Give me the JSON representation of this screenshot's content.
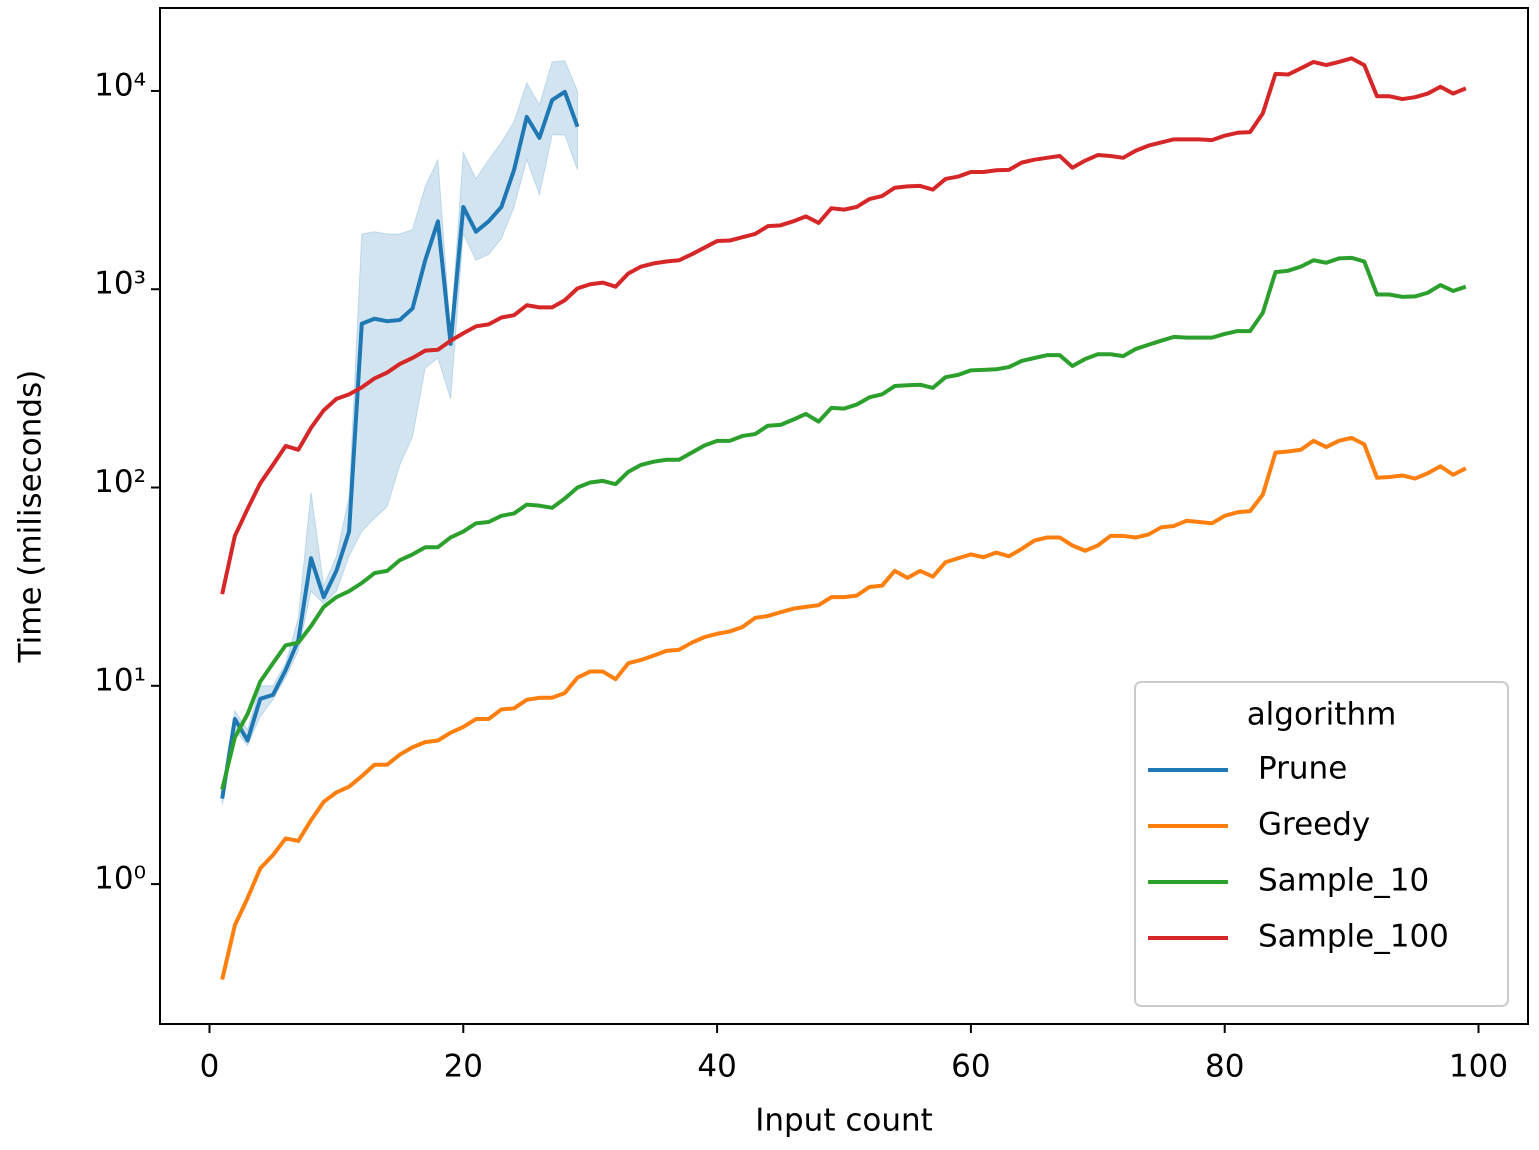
{
  "chart_data": {
    "type": "line",
    "xlabel": "Input count",
    "ylabel": "Time (miliseconds)",
    "x": [
      1,
      2,
      3,
      4,
      5,
      6,
      7,
      8,
      9,
      10,
      11,
      12,
      13,
      14,
      15,
      16,
      17,
      18,
      19,
      20,
      21,
      22,
      23,
      24,
      25,
      26,
      27,
      28,
      29,
      30,
      31,
      32,
      33,
      34,
      35,
      36,
      37,
      38,
      39,
      40,
      41,
      42,
      43,
      44,
      45,
      46,
      47,
      48,
      49,
      50,
      51,
      52,
      53,
      54,
      55,
      56,
      57,
      58,
      59,
      60,
      61,
      62,
      63,
      64,
      65,
      66,
      67,
      68,
      69,
      70,
      71,
      72,
      73,
      74,
      75,
      76,
      77,
      78,
      79,
      80,
      81,
      82,
      83,
      84,
      85,
      86,
      87,
      88,
      89,
      90,
      91,
      92,
      93,
      94,
      95,
      96,
      97,
      98,
      99
    ],
    "xlim": [
      -3.9,
      103.9
    ],
    "xticks": [
      0,
      20,
      40,
      60,
      80,
      100
    ],
    "ylim": [
      0.197,
      26200
    ],
    "log": true,
    "yticks": [
      {
        "value": 1,
        "label": "10⁰"
      },
      {
        "value": 10,
        "label": "10¹"
      },
      {
        "value": 100,
        "label": "10²"
      },
      {
        "value": 1000,
        "label": "10³"
      },
      {
        "value": 10000,
        "label": "10⁴"
      }
    ],
    "legend_title": "algorithm",
    "legend_position": "lower right",
    "series": [
      {
        "name": "Prune",
        "color": "#1f77b4",
        "x": [
          1,
          2,
          3,
          4,
          5,
          6,
          7,
          8,
          9,
          10,
          11,
          12,
          13,
          14,
          15,
          16,
          17,
          18,
          19,
          20,
          21,
          22,
          23,
          24,
          25,
          26,
          27,
          28,
          29
        ],
        "values": [
          2.7,
          6.8,
          5.3,
          8.6,
          9.0,
          12,
          17,
          44,
          28,
          38,
          60,
          670,
          710,
          690,
          700,
          800,
          1400,
          2200,
          530,
          2600,
          1950,
          2200,
          2600,
          4000,
          7400,
          5800,
          9000,
          9900,
          6600
        ],
        "ci_lower": [
          2.5,
          6,
          5,
          7,
          8.5,
          11,
          15,
          30,
          26,
          30,
          45,
          60,
          70,
          80,
          130,
          180,
          400,
          450,
          280,
          1900,
          1400,
          1500,
          1800,
          2600,
          4500,
          3000,
          6000,
          6000,
          4000
        ],
        "ci_upper": [
          2.9,
          7.5,
          6,
          10,
          10,
          13,
          22,
          95,
          32,
          45,
          90,
          1900,
          1950,
          1900,
          1900,
          2000,
          3300,
          4500,
          600,
          4900,
          3600,
          4500,
          5500,
          7000,
          11000,
          8500,
          14000,
          14200,
          10000
        ]
      },
      {
        "name": "Greedy",
        "color": "#ff7f0e",
        "values": [
          0.33,
          0.62,
          0.85,
          1.2,
          1.4,
          1.7,
          1.65,
          2.1,
          2.6,
          2.9,
          3.1,
          3.5,
          4.0,
          4.0,
          4.5,
          4.9,
          5.2,
          5.3,
          5.8,
          6.2,
          6.8,
          6.8,
          7.6,
          7.7,
          8.5,
          8.7,
          8.7,
          9.2,
          11,
          11.8,
          11.8,
          10.8,
          13,
          13.5,
          14.2,
          15,
          15.2,
          16.5,
          17.6,
          18.3,
          18.8,
          19.8,
          22,
          22.5,
          23.5,
          24.5,
          25,
          25.5,
          28,
          28,
          28.5,
          31.5,
          32,
          38,
          35,
          38,
          35.5,
          42,
          44,
          46,
          44.5,
          47,
          45,
          49,
          54,
          56,
          56,
          51,
          48,
          51,
          57,
          57,
          56,
          58,
          63,
          64,
          68,
          67,
          66,
          72,
          75,
          76,
          92,
          150,
          152,
          155,
          172,
          160,
          172,
          178,
          165,
          112,
          113,
          115,
          111,
          118,
          128,
          116,
          125
        ]
      },
      {
        "name": "Sample_10",
        "color": "#2ca02c",
        "values": [
          3.0,
          5.5,
          7.2,
          10.5,
          13,
          16,
          16.5,
          20,
          25,
          28,
          30,
          33,
          37,
          38,
          43,
          46,
          50,
          50,
          56,
          60,
          66,
          67,
          72,
          74,
          82,
          81,
          79,
          88,
          100,
          106,
          108,
          104,
          120,
          130,
          135,
          138,
          138,
          150,
          163,
          172,
          172,
          182,
          186,
          205,
          207,
          220,
          235,
          215,
          252,
          250,
          262,
          285,
          295,
          325,
          328,
          330,
          318,
          360,
          370,
          390,
          392,
          395,
          405,
          435,
          450,
          465,
          465,
          410,
          445,
          470,
          470,
          460,
          500,
          525,
          550,
          575,
          570,
          570,
          570,
          595,
          615,
          615,
          760,
          1220,
          1240,
          1300,
          1400,
          1360,
          1430,
          1440,
          1380,
          940,
          940,
          915,
          920,
          960,
          1050,
          980,
          1030
        ]
      },
      {
        "name": "Sample_100",
        "color": "#d62728",
        "values": [
          29,
          57,
          78,
          105,
          130,
          162,
          155,
          200,
          245,
          280,
          295,
          320,
          355,
          380,
          420,
          450,
          490,
          495,
          550,
          600,
          650,
          665,
          720,
          740,
          830,
          810,
          810,
          880,
          1010,
          1060,
          1080,
          1030,
          1200,
          1300,
          1350,
          1380,
          1400,
          1500,
          1620,
          1750,
          1760,
          1830,
          1900,
          2080,
          2100,
          2200,
          2330,
          2160,
          2560,
          2520,
          2600,
          2850,
          2950,
          3250,
          3300,
          3320,
          3180,
          3600,
          3700,
          3900,
          3900,
          3980,
          4000,
          4350,
          4500,
          4600,
          4700,
          4100,
          4450,
          4750,
          4700,
          4600,
          5000,
          5300,
          5500,
          5700,
          5700,
          5700,
          5650,
          5950,
          6150,
          6200,
          7700,
          12200,
          12100,
          13000,
          14000,
          13500,
          14000,
          14600,
          13500,
          9400,
          9400,
          9100,
          9300,
          9700,
          10500,
          9700,
          10300
        ]
      }
    ]
  }
}
